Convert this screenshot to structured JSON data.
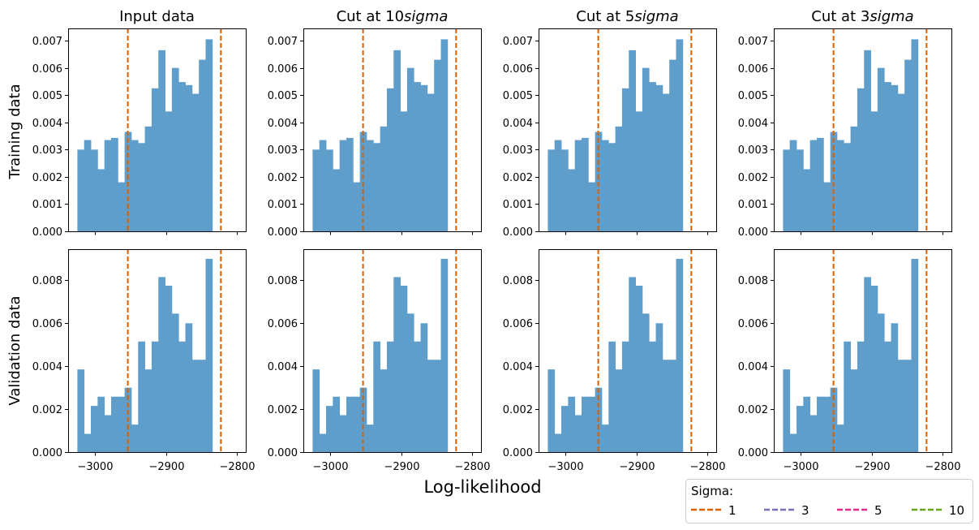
{
  "figure": {
    "xlabel": "Log-likelihood",
    "row_labels": [
      "Training data",
      "Validation data"
    ],
    "legend": {
      "title": "Sigma:",
      "entries": [
        {
          "label": "1",
          "color": "#d95f02"
        },
        {
          "label": "3",
          "color": "#7570b3"
        },
        {
          "label": "5",
          "color": "#e7298a"
        },
        {
          "label": "10",
          "color": "#66a61e"
        }
      ]
    },
    "bar_color": "#5f9ecb",
    "line_color": "#d95f02"
  },
  "chart_data": [
    {
      "type": "bar",
      "title": "Input data",
      "row": "Training data",
      "bin_start": -3025,
      "bin_width": 9.5,
      "values": [
        0.003,
        0.00335,
        0.003,
        0.00228,
        0.00335,
        0.00343,
        0.0018,
        0.00365,
        0.00335,
        0.00324,
        0.00385,
        0.00525,
        0.00665,
        0.0044,
        0.006,
        0.00548,
        0.00537,
        0.00505,
        0.0063,
        0.00705
      ],
      "xlim": [
        -3038,
        -2788
      ],
      "ylim": [
        0,
        0.00745
      ],
      "yticks": [
        0,
        0.001,
        0.002,
        0.003,
        0.004,
        0.005,
        0.006,
        0.007
      ],
      "ytick_labels": [
        "0.000",
        "0.001",
        "0.002",
        "0.003",
        "0.004",
        "0.005",
        "0.006",
        "0.007"
      ],
      "xticks": [
        -3000,
        -2900,
        -2800
      ],
      "xtick_labels": [
        "−3000",
        "−2900",
        "−2800"
      ],
      "vlines": [
        -2954,
        -2823
      ]
    },
    {
      "type": "bar",
      "title_plain": "Cut at 10",
      "title_math": "sigma",
      "row": "Training data",
      "bin_start": -3025,
      "bin_width": 9.5,
      "values": [
        0.003,
        0.00335,
        0.003,
        0.00228,
        0.00335,
        0.00343,
        0.0018,
        0.00365,
        0.00335,
        0.00324,
        0.00385,
        0.00525,
        0.00665,
        0.0044,
        0.006,
        0.00548,
        0.00537,
        0.00505,
        0.0063,
        0.00705
      ],
      "xlim": [
        -3038,
        -2788
      ],
      "ylim": [
        0,
        0.00745
      ],
      "yticks": [
        0,
        0.001,
        0.002,
        0.003,
        0.004,
        0.005,
        0.006,
        0.007
      ],
      "ytick_labels": [
        "0.000",
        "0.001",
        "0.002",
        "0.003",
        "0.004",
        "0.005",
        "0.006",
        "0.007"
      ],
      "xticks": [
        -3000,
        -2900,
        -2800
      ],
      "xtick_labels": [
        "−3000",
        "−2900",
        "−2800"
      ],
      "vlines": [
        -2954,
        -2823
      ]
    },
    {
      "type": "bar",
      "title_plain": "Cut at 5",
      "title_math": "sigma",
      "row": "Training data",
      "bin_start": -3025,
      "bin_width": 9.5,
      "values": [
        0.003,
        0.00335,
        0.003,
        0.00228,
        0.00335,
        0.00343,
        0.0018,
        0.00365,
        0.00335,
        0.00324,
        0.00385,
        0.00525,
        0.00665,
        0.0044,
        0.006,
        0.00548,
        0.00537,
        0.00505,
        0.0063,
        0.00705
      ],
      "xlim": [
        -3038,
        -2788
      ],
      "ylim": [
        0,
        0.00745
      ],
      "yticks": [
        0,
        0.001,
        0.002,
        0.003,
        0.004,
        0.005,
        0.006,
        0.007
      ],
      "ytick_labels": [
        "0.000",
        "0.001",
        "0.002",
        "0.003",
        "0.004",
        "0.005",
        "0.006",
        "0.007"
      ],
      "xticks": [
        -3000,
        -2900,
        -2800
      ],
      "xtick_labels": [
        "−3000",
        "−2900",
        "−2800"
      ],
      "vlines": [
        -2954,
        -2823
      ]
    },
    {
      "type": "bar",
      "title_plain": "Cut at 3",
      "title_math": "sigma",
      "row": "Training data",
      "bin_start": -3025,
      "bin_width": 9.5,
      "values": [
        0.003,
        0.00335,
        0.003,
        0.00228,
        0.00335,
        0.00343,
        0.0018,
        0.00365,
        0.00335,
        0.00324,
        0.00385,
        0.00525,
        0.00665,
        0.0044,
        0.006,
        0.00548,
        0.00537,
        0.00505,
        0.0063,
        0.00705
      ],
      "xlim": [
        -3038,
        -2788
      ],
      "ylim": [
        0,
        0.00745
      ],
      "yticks": [
        0,
        0.001,
        0.002,
        0.003,
        0.004,
        0.005,
        0.006,
        0.007
      ],
      "ytick_labels": [
        "0.000",
        "0.001",
        "0.002",
        "0.003",
        "0.004",
        "0.005",
        "0.006",
        "0.007"
      ],
      "xticks": [
        -3000,
        -2900,
        -2800
      ],
      "xtick_labels": [
        "−3000",
        "−2900",
        "−2800"
      ],
      "vlines": [
        -2954,
        -2823
      ]
    },
    {
      "type": "bar",
      "row": "Validation data",
      "bin_start": -3025,
      "bin_width": 9.5,
      "values": [
        0.00385,
        0.00085,
        0.00215,
        0.00258,
        0.00172,
        0.00258,
        0.00258,
        0.003,
        0.00128,
        0.00515,
        0.00385,
        0.00515,
        0.00815,
        0.00775,
        0.00645,
        0.00515,
        0.006,
        0.0043,
        0.0043,
        0.009
      ],
      "xlim": [
        -3038,
        -2788
      ],
      "ylim": [
        0,
        0.00945
      ],
      "yticks": [
        0,
        0.002,
        0.004,
        0.006,
        0.008
      ],
      "ytick_labels": [
        "0.000",
        "0.002",
        "0.004",
        "0.006",
        "0.008"
      ],
      "xticks": [
        -3000,
        -2900,
        -2800
      ],
      "xtick_labels": [
        "−3000",
        "−2900",
        "−2800"
      ],
      "vlines": [
        -2954,
        -2823
      ]
    },
    {
      "type": "bar",
      "row": "Validation data",
      "bin_start": -3025,
      "bin_width": 9.5,
      "values": [
        0.00385,
        0.00085,
        0.00215,
        0.00258,
        0.00172,
        0.00258,
        0.00258,
        0.003,
        0.00128,
        0.00515,
        0.00385,
        0.00515,
        0.00815,
        0.00775,
        0.00645,
        0.00515,
        0.006,
        0.0043,
        0.0043,
        0.009
      ],
      "xlim": [
        -3038,
        -2788
      ],
      "ylim": [
        0,
        0.00945
      ],
      "yticks": [
        0,
        0.002,
        0.004,
        0.006,
        0.008
      ],
      "ytick_labels": [
        "0.000",
        "0.002",
        "0.004",
        "0.006",
        "0.008"
      ],
      "xticks": [
        -3000,
        -2900,
        -2800
      ],
      "xtick_labels": [
        "−3000",
        "−2900",
        "−2800"
      ],
      "vlines": [
        -2954,
        -2823
      ]
    },
    {
      "type": "bar",
      "row": "Validation data",
      "bin_start": -3025,
      "bin_width": 9.5,
      "values": [
        0.00385,
        0.00085,
        0.00215,
        0.00258,
        0.00172,
        0.00258,
        0.00258,
        0.003,
        0.00128,
        0.00515,
        0.00385,
        0.00515,
        0.00815,
        0.00775,
        0.00645,
        0.00515,
        0.006,
        0.0043,
        0.0043,
        0.009
      ],
      "xlim": [
        -3038,
        -2788
      ],
      "ylim": [
        0,
        0.00945
      ],
      "yticks": [
        0,
        0.002,
        0.004,
        0.006,
        0.008
      ],
      "ytick_labels": [
        "0.000",
        "0.002",
        "0.004",
        "0.006",
        "0.008"
      ],
      "xticks": [
        -3000,
        -2900,
        -2800
      ],
      "xtick_labels": [
        "−3000",
        "−2900",
        "−2800"
      ],
      "vlines": [
        -2954,
        -2823
      ]
    },
    {
      "type": "bar",
      "row": "Validation data",
      "bin_start": -3025,
      "bin_width": 9.5,
      "values": [
        0.00385,
        0.00085,
        0.00215,
        0.00258,
        0.00172,
        0.00258,
        0.00258,
        0.003,
        0.00128,
        0.00515,
        0.00385,
        0.00515,
        0.00815,
        0.00775,
        0.00645,
        0.00515,
        0.006,
        0.0043,
        0.0043,
        0.009
      ],
      "xlim": [
        -3038,
        -2788
      ],
      "ylim": [
        0,
        0.00945
      ],
      "yticks": [
        0,
        0.002,
        0.004,
        0.006,
        0.008
      ],
      "ytick_labels": [
        "0.000",
        "0.002",
        "0.004",
        "0.006",
        "0.008"
      ],
      "xticks": [
        -3000,
        -2900,
        -2800
      ],
      "xtick_labels": [
        "−3000",
        "−2900",
        "−2800"
      ],
      "vlines": [
        -2954,
        -2823
      ]
    }
  ]
}
